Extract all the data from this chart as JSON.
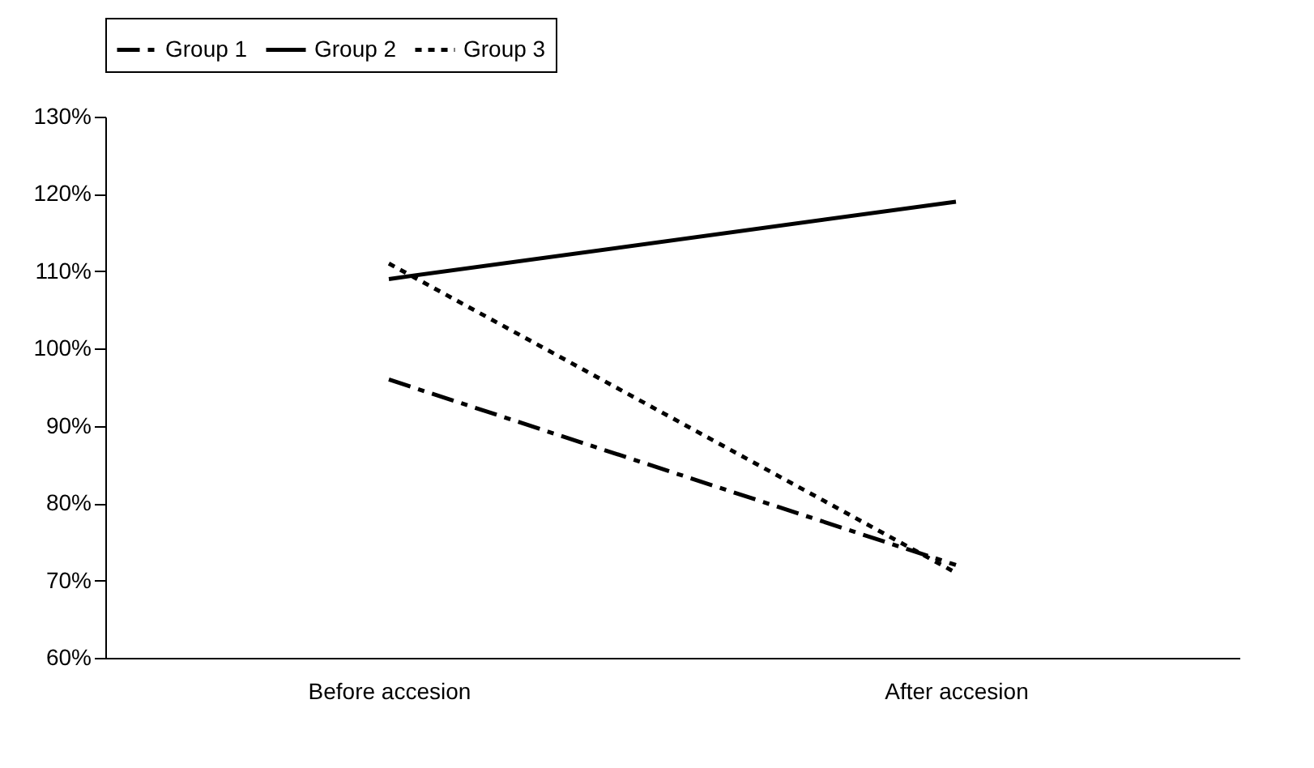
{
  "chart_data": {
    "type": "line",
    "categories": [
      "Before accesion",
      "After accesion"
    ],
    "series": [
      {
        "name": "Group 1",
        "color": "#000000",
        "values": [
          96,
          72
        ],
        "line_style": "dashed"
      },
      {
        "name": "Group 2",
        "color": "#000000",
        "values": [
          109,
          119
        ],
        "line_style": "solid"
      },
      {
        "name": "Group 3",
        "color": "#000000",
        "values": [
          111,
          71
        ],
        "line_style": "dotted"
      }
    ],
    "ylim": [
      60,
      130
    ],
    "yticks": [
      {
        "value": 60,
        "label": "60%"
      },
      {
        "value": 70,
        "label": "70%"
      },
      {
        "value": 80,
        "label": "80%"
      },
      {
        "value": 90,
        "label": "90%"
      },
      {
        "value": 100,
        "label": "100%"
      },
      {
        "value": 110,
        "label": "110%"
      },
      {
        "value": 120,
        "label": "120%"
      },
      {
        "value": 130,
        "label": "130%"
      }
    ],
    "grid": false,
    "legend": "top",
    "marker": "none"
  }
}
